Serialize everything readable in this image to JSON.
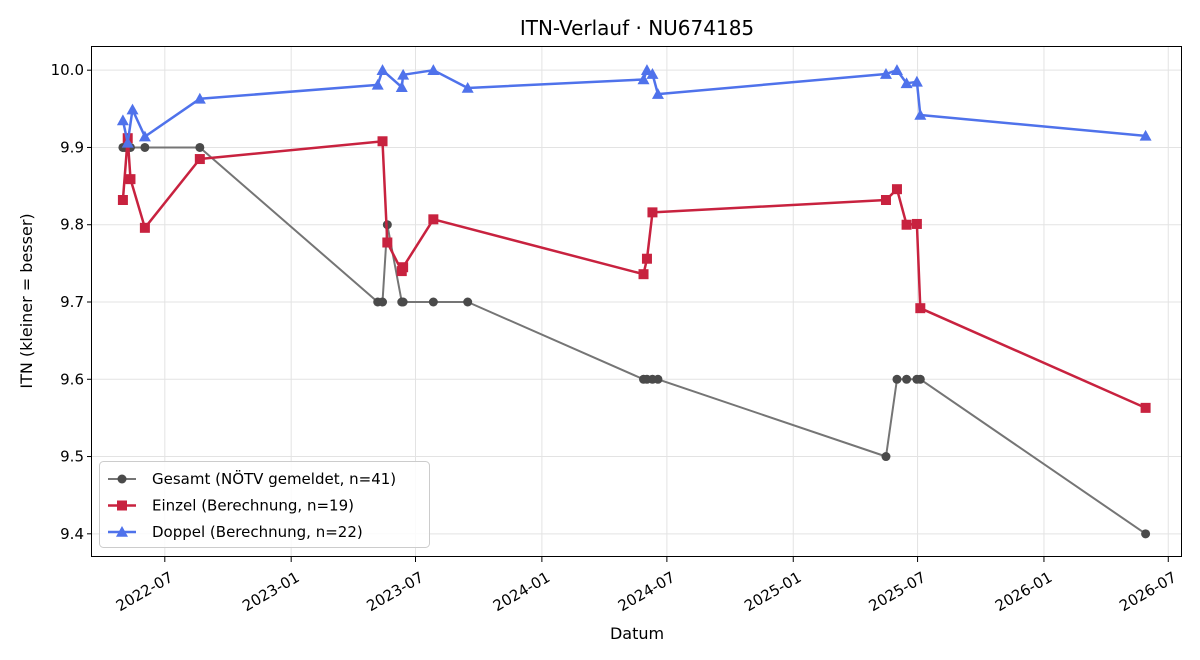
{
  "chart_data": {
    "type": "line",
    "title": "ITN-Verlauf · NU674185",
    "xlabel": "Datum",
    "ylabel": "ITN  (kleiner = besser)",
    "x_type": "date",
    "xlim": [
      "2022-03-17",
      "2026-07-21"
    ],
    "ylim": [
      9.37,
      10.03
    ],
    "x_ticks": [
      "2022-07-01",
      "2023-01-01",
      "2023-07-01",
      "2024-01-01",
      "2024-07-01",
      "2025-01-01",
      "2025-07-01",
      "2026-01-01",
      "2026-07-01"
    ],
    "x_tick_labels": [
      "2022-07",
      "2023-01",
      "2023-07",
      "2024-01",
      "2024-07",
      "2025-01",
      "2025-07",
      "2026-01",
      "2026-07"
    ],
    "y_ticks": [
      9.4,
      9.5,
      9.6,
      9.7,
      9.8,
      9.9,
      10.0
    ],
    "y_tick_labels": [
      "9.4",
      "9.5",
      "9.6",
      "9.7",
      "9.8",
      "9.9",
      "10.0"
    ],
    "grid": true,
    "legend_position": "lower-left",
    "series": [
      {
        "name": "Gesamt (NÖTV gemeldet, n=41)",
        "color": "#757575",
        "marker_color": "#4a4a4a",
        "marker": "circle",
        "points": [
          [
            "2022-05-01",
            9.9
          ],
          [
            "2022-05-04",
            9.9
          ],
          [
            "2022-05-08",
            9.9
          ],
          [
            "2022-05-12",
            9.9
          ],
          [
            "2022-06-02",
            9.9
          ],
          [
            "2022-08-21",
            9.9
          ],
          [
            "2023-05-07",
            9.7
          ],
          [
            "2023-05-14",
            9.7
          ],
          [
            "2023-05-21",
            9.8
          ],
          [
            "2023-06-11",
            9.7
          ],
          [
            "2023-06-13",
            9.7
          ],
          [
            "2023-07-27",
            9.7
          ],
          [
            "2023-09-15",
            9.7
          ],
          [
            "2024-05-28",
            9.6
          ],
          [
            "2024-06-02",
            9.6
          ],
          [
            "2024-06-10",
            9.6
          ],
          [
            "2024-06-18",
            9.6
          ],
          [
            "2025-05-16",
            9.5
          ],
          [
            "2025-06-01",
            9.6
          ],
          [
            "2025-06-15",
            9.6
          ],
          [
            "2025-06-30",
            9.6
          ],
          [
            "2025-07-05",
            9.6
          ],
          [
            "2026-05-29",
            9.4
          ]
        ]
      },
      {
        "name": "Einzel (Berechnung, n=19)",
        "color": "#c8223f",
        "marker_color": "#c8223f",
        "marker": "square",
        "points": [
          [
            "2022-05-01",
            9.832
          ],
          [
            "2022-05-08",
            9.912
          ],
          [
            "2022-05-12",
            9.859
          ],
          [
            "2022-06-02",
            9.796
          ],
          [
            "2022-08-21",
            9.885
          ],
          [
            "2023-05-14",
            9.908
          ],
          [
            "2023-05-21",
            9.777
          ],
          [
            "2023-06-11",
            9.74
          ],
          [
            "2023-06-13",
            9.745
          ],
          [
            "2023-07-27",
            9.807
          ],
          [
            "2024-05-28",
            9.736
          ],
          [
            "2024-06-02",
            9.756
          ],
          [
            "2024-06-10",
            9.816
          ],
          [
            "2025-05-16",
            9.832
          ],
          [
            "2025-06-01",
            9.846
          ],
          [
            "2025-06-15",
            9.8
          ],
          [
            "2025-06-30",
            9.801
          ],
          [
            "2025-07-05",
            9.692
          ],
          [
            "2026-05-29",
            9.563
          ]
        ]
      },
      {
        "name": "Doppel (Berechnung, n=22)",
        "color": "#4f72eb",
        "marker_color": "#4f72eb",
        "marker": "triangle",
        "points": [
          [
            "2022-05-01",
            9.935
          ],
          [
            "2022-05-08",
            9.906
          ],
          [
            "2022-05-15",
            9.949
          ],
          [
            "2022-06-02",
            9.914
          ],
          [
            "2022-08-21",
            9.963
          ],
          [
            "2023-05-07",
            9.981
          ],
          [
            "2023-05-14",
            10.0
          ],
          [
            "2023-06-11",
            9.978
          ],
          [
            "2023-06-13",
            9.994
          ],
          [
            "2023-07-27",
            10.0
          ],
          [
            "2023-09-15",
            9.977
          ],
          [
            "2024-05-28",
            9.988
          ],
          [
            "2024-06-02",
            10.0
          ],
          [
            "2024-06-10",
            9.995
          ],
          [
            "2024-06-18",
            9.969
          ],
          [
            "2025-05-16",
            9.995
          ],
          [
            "2025-06-01",
            10.0
          ],
          [
            "2025-06-15",
            9.983
          ],
          [
            "2025-06-30",
            9.985
          ],
          [
            "2025-07-05",
            9.942
          ],
          [
            "2026-05-29",
            9.915
          ]
        ]
      }
    ]
  }
}
